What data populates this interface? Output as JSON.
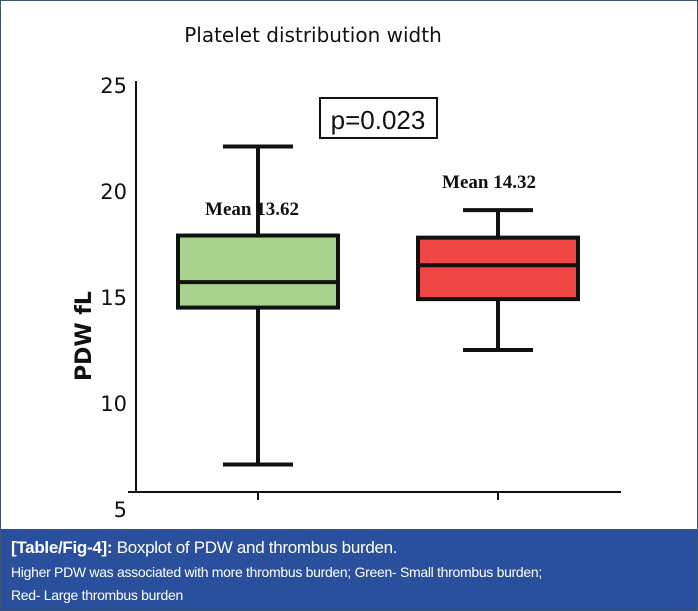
{
  "chart_data": {
    "type": "boxplot",
    "title": "Platelet distribution width",
    "ylabel": "PDW fL",
    "xlabel": "",
    "ylim": [
      5,
      25
    ],
    "yticks": [
      "25",
      "20",
      "15",
      "10",
      "5"
    ],
    "ytick_values": [
      25,
      20,
      15,
      10,
      5
    ],
    "annotation": "p=0.023",
    "series": [
      {
        "name": "Small thrombus burden",
        "color": "#a9d18e",
        "whisker_low": 7.1,
        "q1": 14.5,
        "median": 15.7,
        "q3": 17.9,
        "whisker_high": 22.1,
        "mean_label": "Mean 13.62",
        "mean": 13.62
      },
      {
        "name": "Large thrombus burden",
        "color": "#ee4545",
        "whisker_low": 12.5,
        "q1": 14.9,
        "median": 16.5,
        "q3": 17.8,
        "whisker_high": 19.1,
        "mean_label": "Mean 14.32",
        "mean": 14.32
      }
    ]
  },
  "caption": {
    "label": "[Table/Fig-4]:",
    "title": " Boxplot of PDW and thrombus burden.",
    "line2": "Higher PDW was associated with more thrombus burden; Green- Small thrombus burden;",
    "line3": "Red- Large thrombus burden"
  },
  "colors": {
    "caption_bg": "#2a4f9c",
    "green": "#a9d18e",
    "red": "#ee4545"
  }
}
